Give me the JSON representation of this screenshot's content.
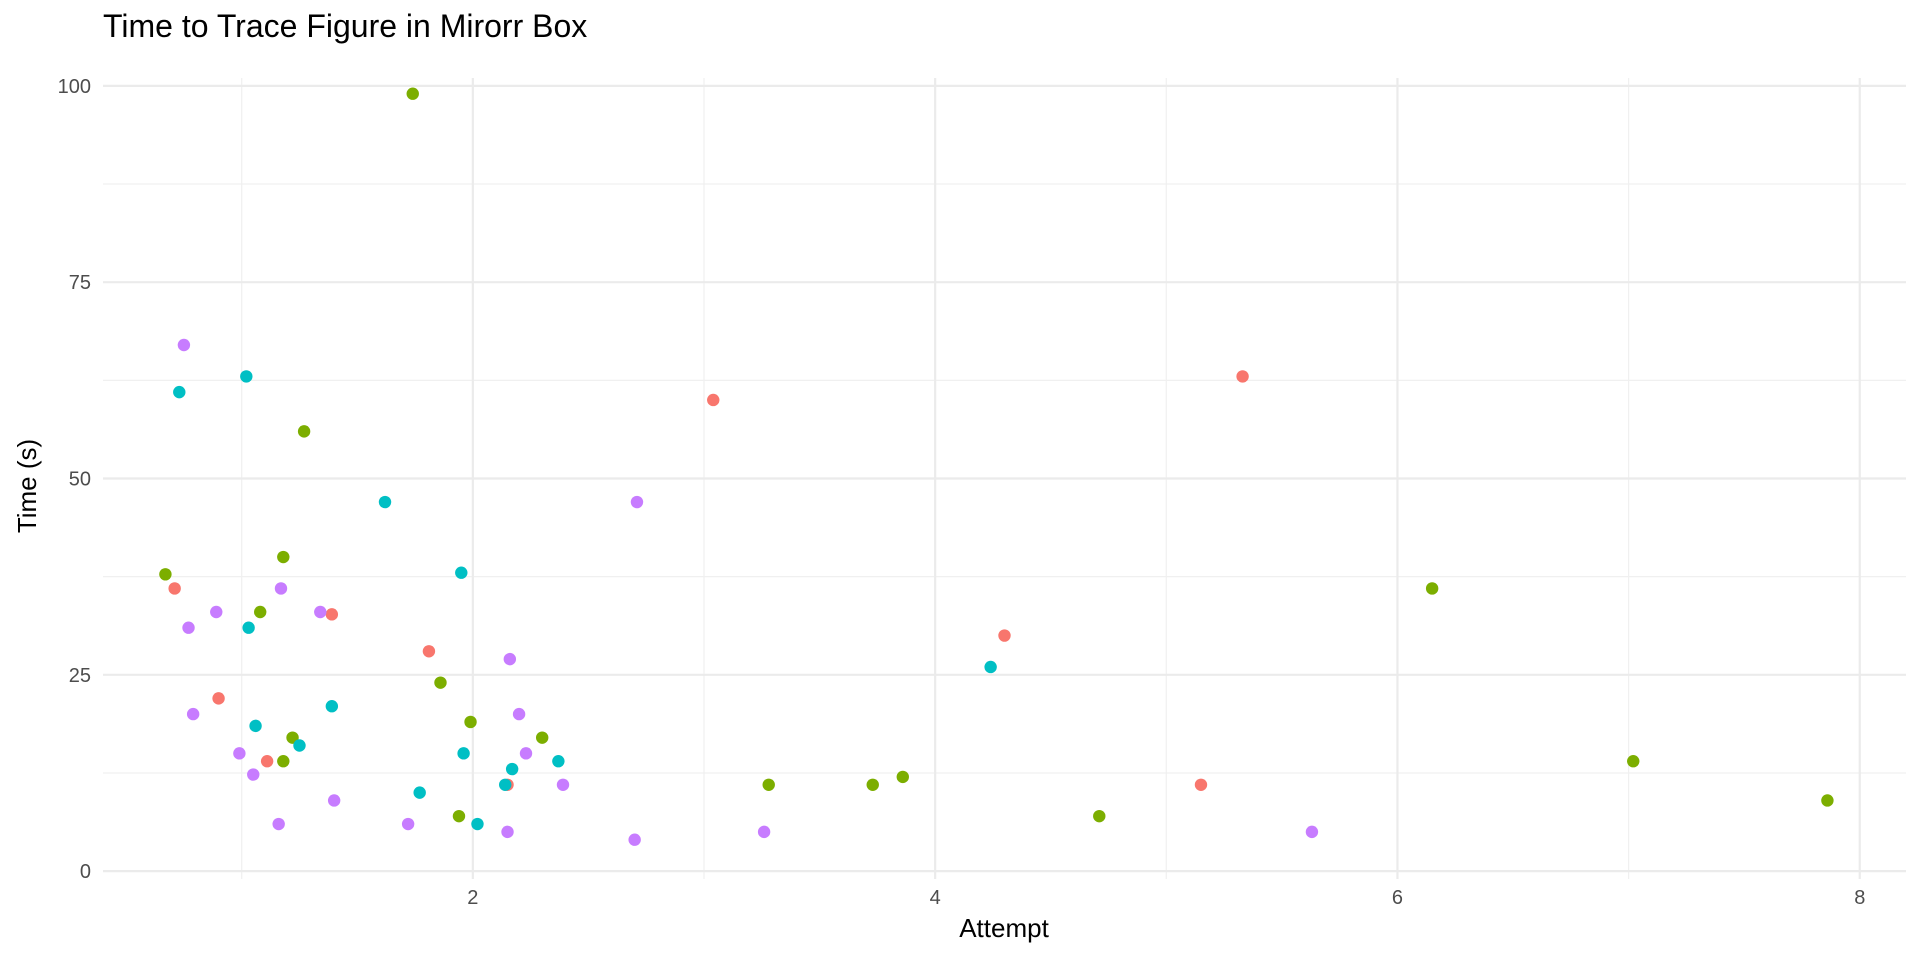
{
  "chart_data": {
    "type": "scatter",
    "title": "Time to Trace Figure in Mirorr Box",
    "xlabel": "Attempt",
    "ylabel": "Time (s)",
    "xlim": [
      0.4,
      8.2
    ],
    "ylim": [
      -1,
      101
    ],
    "x_ticks": [
      2,
      4,
      6,
      8
    ],
    "y_ticks": [
      0,
      25,
      50,
      75,
      100
    ],
    "grid": true,
    "legend": "none",
    "series": [
      {
        "color": "#F8766D",
        "points": [
          [
            0.71,
            36
          ],
          [
            0.9,
            22
          ],
          [
            1.11,
            14
          ],
          [
            1.39,
            32.7
          ],
          [
            1.81,
            28
          ],
          [
            2.15,
            11
          ],
          [
            3.04,
            60
          ],
          [
            4.3,
            30
          ],
          [
            5.15,
            11
          ],
          [
            5.33,
            63
          ]
        ]
      },
      {
        "color": "#7CAE00",
        "points": [
          [
            0.67,
            37.8
          ],
          [
            1.08,
            33
          ],
          [
            1.18,
            40
          ],
          [
            1.18,
            14
          ],
          [
            1.22,
            17
          ],
          [
            1.27,
            56
          ],
          [
            1.74,
            99
          ],
          [
            1.86,
            24
          ],
          [
            1.94,
            7
          ],
          [
            1.99,
            19
          ],
          [
            2.3,
            17
          ],
          [
            3.28,
            11
          ],
          [
            3.73,
            11
          ],
          [
            3.86,
            12
          ],
          [
            4.71,
            7
          ],
          [
            6.15,
            36
          ],
          [
            7.02,
            14
          ],
          [
            7.86,
            9
          ]
        ]
      },
      {
        "color": "#00BFC4",
        "points": [
          [
            0.73,
            61
          ],
          [
            1.02,
            63
          ],
          [
            1.03,
            31
          ],
          [
            1.06,
            18.5
          ],
          [
            1.25,
            16
          ],
          [
            1.39,
            21
          ],
          [
            1.62,
            47
          ],
          [
            1.77,
            10
          ],
          [
            1.95,
            38
          ],
          [
            1.96,
            15
          ],
          [
            2.02,
            6
          ],
          [
            2.14,
            11
          ],
          [
            2.17,
            13
          ],
          [
            2.37,
            14
          ],
          [
            4.24,
            26
          ]
        ]
      },
      {
        "color": "#C77CFF",
        "points": [
          [
            0.75,
            67
          ],
          [
            0.77,
            31
          ],
          [
            0.79,
            20
          ],
          [
            0.89,
            33
          ],
          [
            0.99,
            15
          ],
          [
            1.05,
            12.3
          ],
          [
            1.16,
            6
          ],
          [
            1.17,
            36
          ],
          [
            1.34,
            33
          ],
          [
            1.4,
            9
          ],
          [
            1.72,
            6
          ],
          [
            2.15,
            5
          ],
          [
            2.16,
            27
          ],
          [
            2.2,
            20
          ],
          [
            2.23,
            15
          ],
          [
            2.39,
            11
          ],
          [
            2.7,
            4
          ],
          [
            2.71,
            47
          ],
          [
            3.26,
            5
          ],
          [
            5.63,
            5
          ]
        ]
      }
    ]
  }
}
